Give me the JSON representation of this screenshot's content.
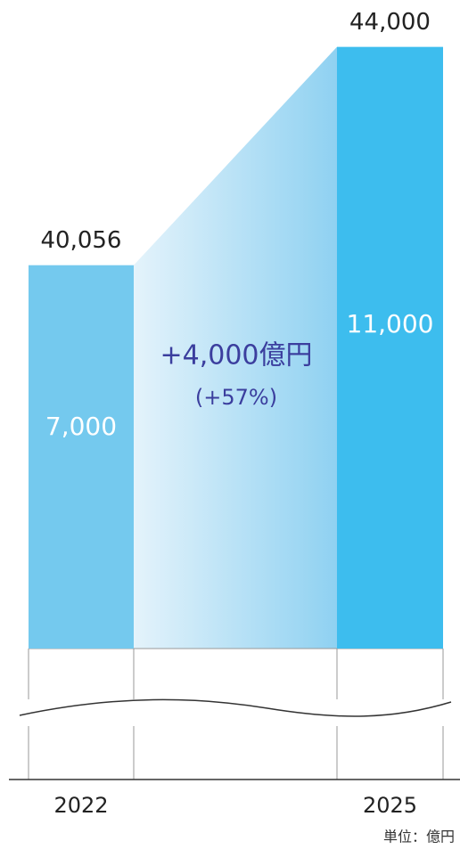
{
  "chart_data": {
    "type": "bar",
    "categories": [
      "2022",
      "2025"
    ],
    "values": [
      40056,
      44000
    ],
    "value_labels": [
      "40,056",
      "44,000"
    ],
    "inner_values": [
      7000,
      11000
    ],
    "inner_value_labels": [
      "7,000",
      "11,000"
    ],
    "colors": [
      "#74c9ee",
      "#3dbdee"
    ],
    "ylim": [
      33130,
      44300
    ],
    "annotation": "+4,000億円",
    "annotation_sub": "(+57%)",
    "unit_label": "単位：億円"
  }
}
